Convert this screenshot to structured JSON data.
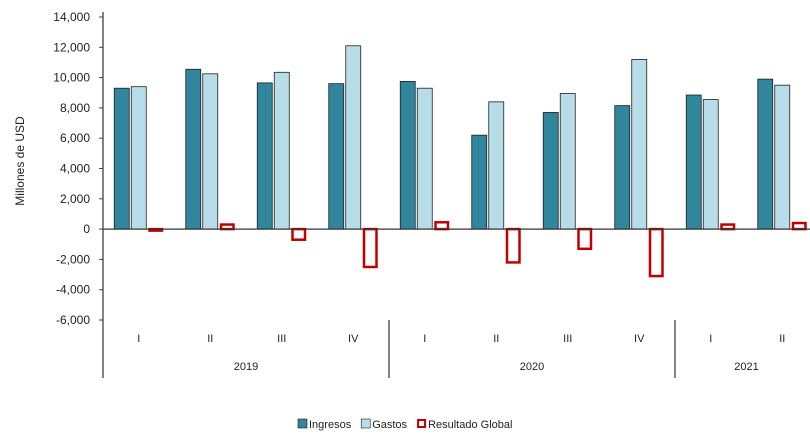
{
  "chart_data": {
    "type": "bar",
    "ylabel": "Millones de USD",
    "ylim": [
      -6000,
      14000
    ],
    "yticks": [
      -6000,
      -4000,
      -2000,
      0,
      2000,
      4000,
      6000,
      8000,
      10000,
      12000,
      14000
    ],
    "ytick_labels": [
      "-6,000",
      "-4,000",
      "-2,000",
      "0",
      "2,000",
      "4,000",
      "6,000",
      "8,000",
      "10,000",
      "12,000",
      "14,000"
    ],
    "categories": [
      "I",
      "II",
      "III",
      "IV",
      "I",
      "II",
      "III",
      "IV",
      "I",
      "II"
    ],
    "groups": [
      {
        "label": "2019",
        "count": 4
      },
      {
        "label": "2020",
        "count": 4
      },
      {
        "label": "2021",
        "count": 2
      }
    ],
    "series": [
      {
        "name": "Ingresos",
        "style": "filled",
        "color": "#31859C",
        "values": [
          9300,
          10550,
          9650,
          9600,
          9750,
          6200,
          7700,
          8150,
          8850,
          9900
        ]
      },
      {
        "name": "Gastos",
        "style": "filled",
        "color": "#B7DEE8",
        "values": [
          9400,
          10250,
          10350,
          12100,
          9300,
          8400,
          8950,
          11200,
          8550,
          9500
        ]
      },
      {
        "name": "Resultado Global",
        "style": "outline",
        "color": "#C00000",
        "values": [
          -100,
          300,
          -700,
          -2500,
          450,
          -2200,
          -1300,
          -3100,
          300,
          400
        ]
      }
    ],
    "legend_position": "bottom",
    "grid": false
  }
}
